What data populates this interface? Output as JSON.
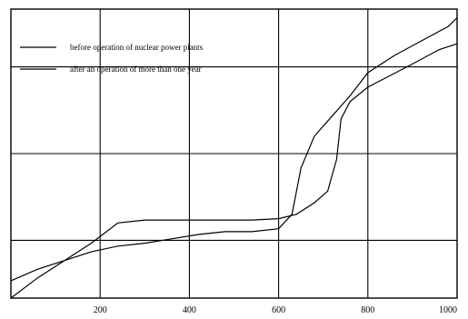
{
  "chart_data": {
    "type": "line",
    "xlim": [
      0,
      1000
    ],
    "ylim": [
      0,
      100
    ],
    "xticks": [
      200,
      400,
      600,
      800,
      1000
    ],
    "xtick_labels": [
      "200",
      "400",
      "600",
      "800",
      "1000"
    ],
    "ygrid": [
      20,
      50,
      80
    ],
    "xlabel": "",
    "ylabel": "",
    "grid": true,
    "legend_position": "top-left",
    "series": [
      {
        "name": "before operation of nuclear power plants",
        "x": [
          0,
          60,
          120,
          180,
          240,
          300,
          360,
          420,
          480,
          540,
          600,
          630,
          650,
          680,
          720,
          760,
          800,
          860,
          920,
          980,
          1000
        ],
        "y": [
          6,
          10,
          13,
          16,
          18,
          19,
          20.5,
          22,
          23,
          23,
          24,
          29,
          45,
          56,
          63,
          70,
          78,
          84,
          89,
          94,
          97
        ]
      },
      {
        "name": "after an operation of more than one year",
        "x": [
          0,
          60,
          120,
          180,
          240,
          300,
          360,
          420,
          480,
          540,
          600,
          640,
          680,
          710,
          730,
          740,
          760,
          800,
          850,
          900,
          960,
          1000
        ],
        "y": [
          0,
          7,
          13,
          19,
          26,
          27,
          27,
          27,
          27,
          27,
          27.5,
          29,
          33,
          37,
          48,
          62,
          68,
          73,
          77,
          81,
          86,
          88
        ]
      }
    ]
  }
}
